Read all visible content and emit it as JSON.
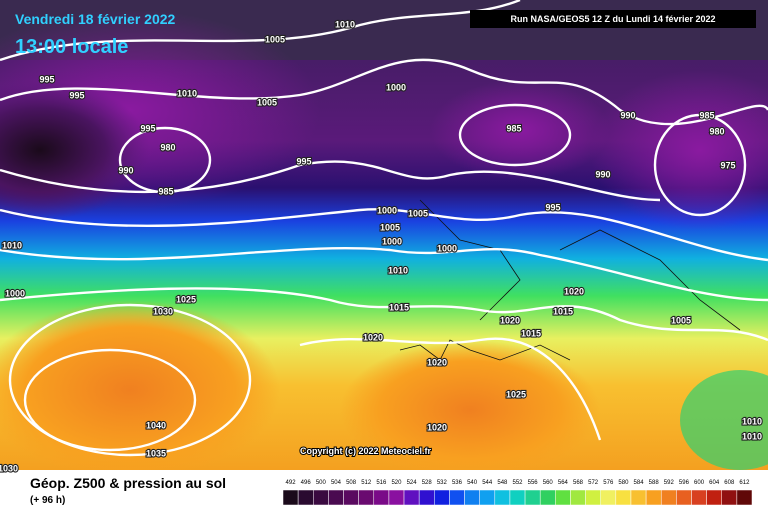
{
  "header": {
    "date": "Vendredi 18 février 2022",
    "time": "13:00 locale",
    "run": "Run NASA/GEOS5 12 Z du Lundi 14 février 2022"
  },
  "copyright": "Copyright (c) 2022 Meteociel.fr",
  "legend": {
    "title": "Géop. Z500 & pression au sol",
    "subtitle": "(+ 96 h)",
    "scale": [
      492,
      496,
      500,
      504,
      508,
      512,
      516,
      520,
      524,
      528,
      532,
      536,
      540,
      544,
      548,
      552,
      556,
      560,
      564,
      568,
      572,
      576,
      580,
      584,
      588,
      592,
      596,
      600,
      604,
      608,
      612
    ]
  },
  "isobar_labels": [
    "1010",
    "1005",
    "995",
    "995",
    "1010",
    "1005",
    "1000",
    "985",
    "990",
    "985",
    "980",
    "975",
    "995",
    "980",
    "990",
    "985",
    "995",
    "990",
    "995",
    "1000",
    "1005",
    "1005",
    "1000",
    "1000",
    "1010",
    "1010",
    "1000",
    "1020",
    "1025",
    "1030",
    "1015",
    "1020",
    "1015",
    "1015",
    "1005",
    "1020",
    "1020",
    "1025",
    "1040",
    "1020",
    "1035",
    "1030",
    "1010",
    "1010"
  ]
}
